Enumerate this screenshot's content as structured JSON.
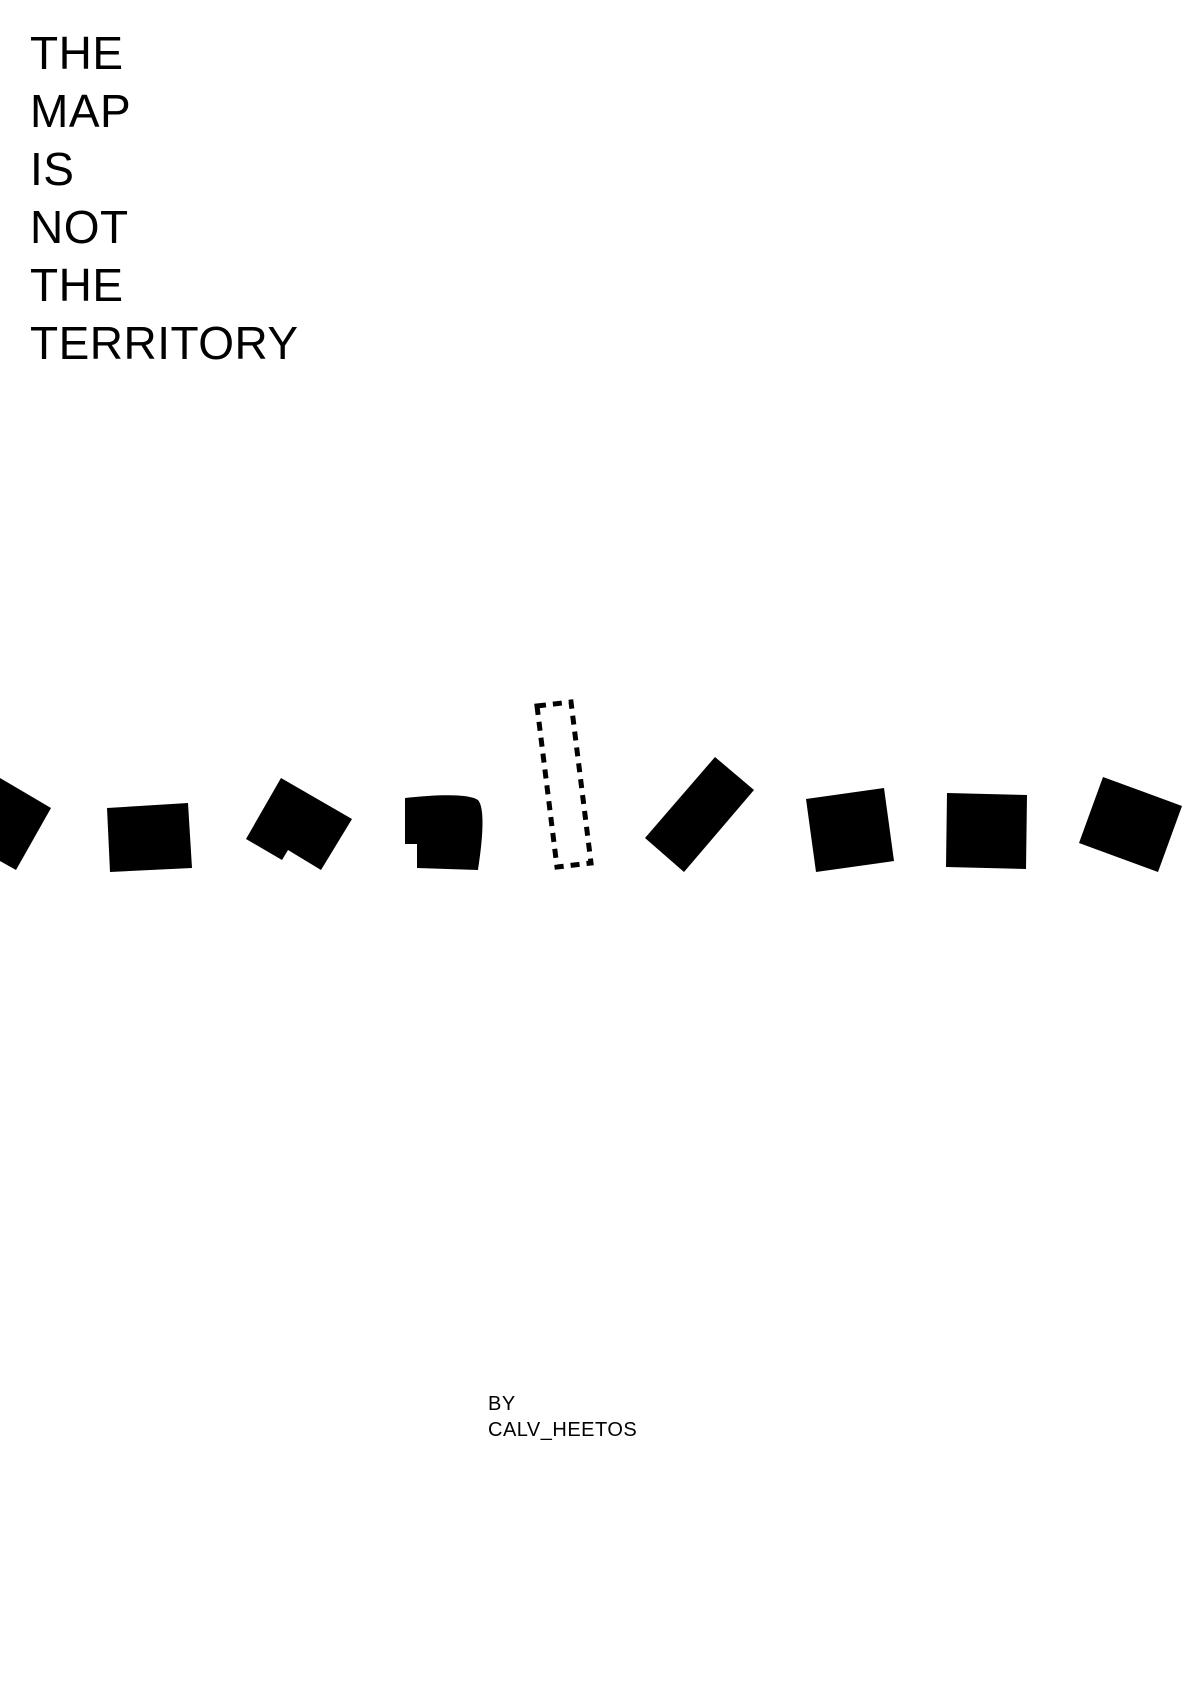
{
  "title": {
    "lines": [
      "THE",
      "MAP",
      "IS",
      "NOT",
      "THE",
      "TERRITORY"
    ]
  },
  "credit": {
    "by": "BY",
    "author": "CALV_HEETOS"
  },
  "colors": {
    "ink": "#000000",
    "paper": "#ffffff"
  }
}
